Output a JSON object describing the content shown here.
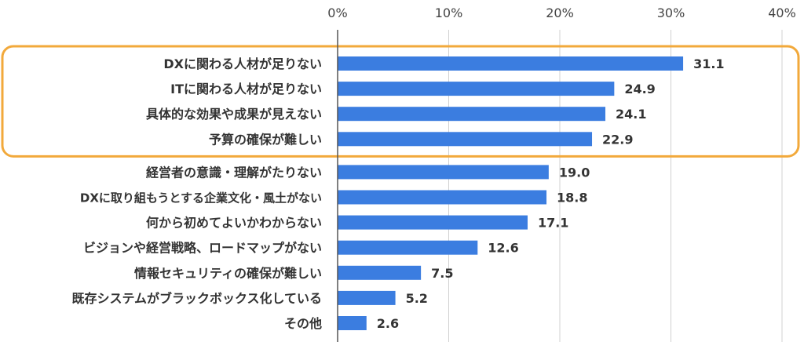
{
  "chart_data": {
    "type": "bar",
    "orientation": "horizontal",
    "title": "",
    "xlabel": "",
    "ylabel": "",
    "xlim": [
      0,
      40
    ],
    "tick_labels": [
      "0%",
      "10%",
      "20%",
      "30%",
      "40%"
    ],
    "grid": true,
    "categories": [
      "DXに関わる人材が足りない",
      "ITに関わる人材が足りない",
      "具体的な効果や成果が見えない",
      "予算の確保が難しい",
      "経営者の意識・理解がたりない",
      "DXに取り組もうとする企業文化・風土がない",
      "何から初めてよいかわからない",
      "ビジョンや経営戦略、ロードマップがない",
      "情報セキュリティの確保が難しい",
      "既存システムがブラックボックス化している",
      "その他"
    ],
    "values": [
      31.1,
      24.9,
      24.1,
      22.9,
      19.0,
      18.8,
      17.1,
      12.6,
      7.5,
      5.2,
      2.6
    ],
    "value_labels": [
      "31.1",
      "24.9",
      "24.1",
      "22.9",
      "19.0",
      "18.8",
      "17.1",
      "12.6",
      "7.5",
      "5.2",
      "2.6"
    ],
    "highlight_group": {
      "first_index": 0,
      "last_index": 3
    }
  },
  "colors": {
    "bar": "#3b7de0",
    "highlight": "#f2a93b",
    "grid": "#d0d0d0",
    "axis": "#555555",
    "text": "#333333"
  }
}
